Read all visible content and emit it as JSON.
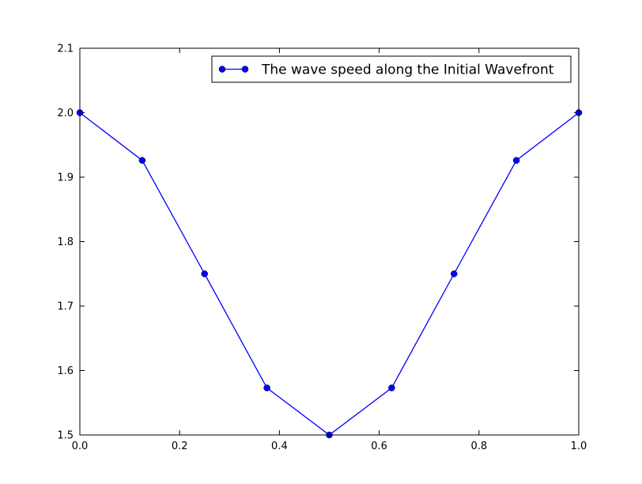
{
  "chart_data": {
    "type": "line",
    "title": "",
    "xlabel": "",
    "ylabel": "",
    "xlim": [
      0.0,
      1.0
    ],
    "ylim": [
      1.5,
      2.1
    ],
    "x_ticks": [
      "0.0",
      "0.2",
      "0.4",
      "0.6",
      "0.8",
      "1.0"
    ],
    "y_ticks": [
      "1.5",
      "1.6",
      "1.7",
      "1.8",
      "1.9",
      "2.0",
      "2.1"
    ],
    "grid": false,
    "legend_position": "top-right",
    "series": [
      {
        "name": "The wave speed along the Initial Wavefront",
        "color": "#0000ff",
        "marker": "circle",
        "x": [
          0.0,
          0.125,
          0.25,
          0.375,
          0.5,
          0.625,
          0.75,
          0.875,
          1.0
        ],
        "y": [
          2.0,
          1.926,
          1.75,
          1.573,
          1.5,
          1.573,
          1.75,
          1.926,
          2.0
        ]
      }
    ]
  }
}
